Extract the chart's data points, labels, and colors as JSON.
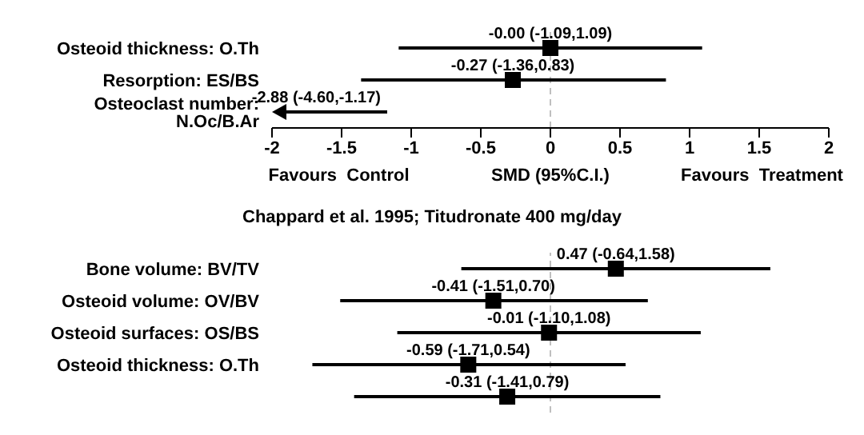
{
  "chart_data": [
    {
      "type": "scatter",
      "orientation": "horizontal",
      "categories": [
        "Osteoid thickness: O.Th",
        "Resorption: ES/BS",
        "Osteoclast number: N.Oc/B.Ar"
      ],
      "values": [
        0,
        -0.27,
        null
      ],
      "errors": [
        [
          -1.09,
          1.09
        ],
        [
          -1.36,
          0.83
        ],
        null
      ],
      "value_labels": [
        "-0.00 (-1.09,1.09)",
        "-0.27 (-1.36,0.83)",
        null
      ],
      "color": "#000000",
      "marker": "square",
      "xlim": [
        -2,
        2
      ],
      "xticks": [
        -2,
        -1.5,
        -1,
        -0.5,
        0,
        0.5,
        1,
        1.5,
        2
      ],
      "xlabel": "SMD (95%C.I.)",
      "annotations": [
        "Favours  Control",
        "Favours  Treatment",
        "-2.88 (-4.60,-1.17)"
      ],
      "ref_lines": [
        {
          "axis": "x",
          "value": 0,
          "color": "#bfbfbf",
          "line_style": "dashed"
        }
      ]
    },
    {
      "type": "scatter",
      "orientation": "horizontal",
      "title": "Chappard et al. 1995; Titudronate 400 mg/day",
      "categories": [
        "Bone volume: BV/TV",
        "Osteoid volume: OV/BV",
        "Osteoid surfaces: OS/BS",
        "Osteoid thickness: O.Th",
        null
      ],
      "values": [
        0.47,
        -0.41,
        -0.01,
        -0.59,
        -0.31
      ],
      "errors": [
        [
          -0.64,
          1.58
        ],
        [
          -1.51,
          0.7
        ],
        [
          -1.1,
          1.08
        ],
        [
          -1.71,
          0.54
        ],
        [
          -1.41,
          0.79
        ]
      ],
      "value_labels": [
        "0.47 (-0.64,1.58)",
        "-0.41 (-1.51,0.70)",
        "-0.01 (-1.10,1.08)",
        "-0.59 (-1.71,0.54)",
        "-0.31 (-1.41,0.79)"
      ],
      "color": "#000000",
      "marker": "square",
      "xlim": [
        -2,
        2
      ],
      "tick_labels": "y",
      "ref_lines": [
        {
          "axis": "x",
          "value": 0,
          "color": "#bfbfbf",
          "line_style": "dashed"
        }
      ]
    }
  ]
}
